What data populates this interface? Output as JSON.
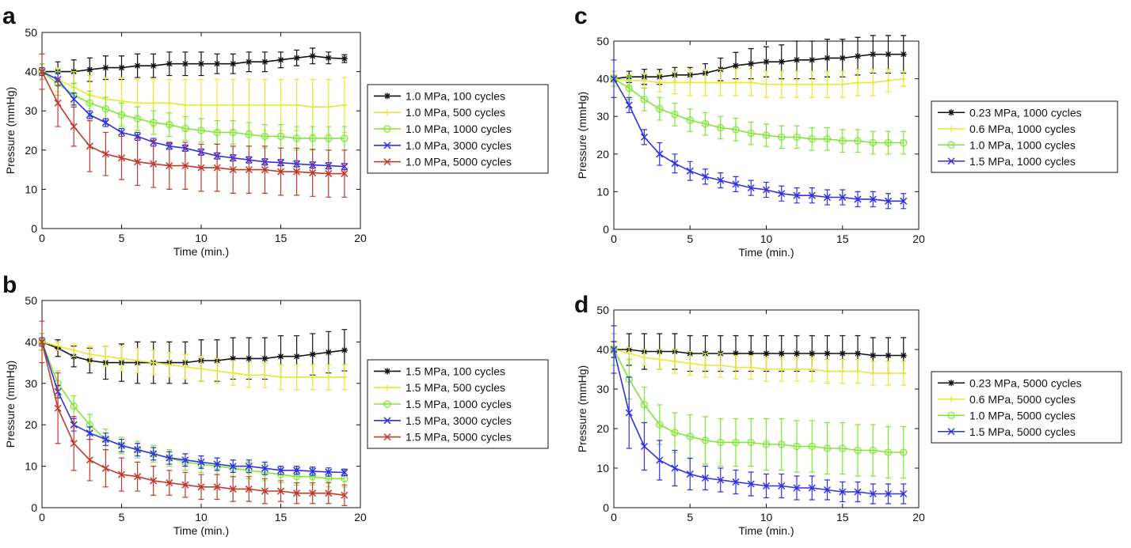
{
  "chart_data": [
    {
      "panel": "a",
      "type": "line",
      "xlabel": "Time (min.)",
      "ylabel": "Pressure (mmHg)",
      "xlim": [
        0,
        20
      ],
      "ylim": [
        0,
        50
      ],
      "xticks": [
        "0",
        "5",
        "10",
        "15",
        "20"
      ],
      "yticks": [
        "0",
        "10",
        "20",
        "30",
        "40",
        "50"
      ],
      "legend_position": "right",
      "x": [
        0,
        1,
        2,
        3,
        4,
        5,
        6,
        7,
        8,
        9,
        10,
        11,
        12,
        13,
        14,
        15,
        16,
        17,
        18,
        19
      ],
      "series": [
        {
          "name": "1.0 MPa, 100 cycles",
          "color": "#111111",
          "marker": "star",
          "values": [
            40,
            40,
            40,
            40.5,
            41,
            41,
            41.5,
            41.5,
            42,
            42,
            42,
            42,
            42,
            42.5,
            42.5,
            43,
            43.5,
            44,
            43.5,
            43.3
          ],
          "errors": [
            2,
            2.5,
            3,
            3,
            3,
            3,
            3,
            3,
            3,
            3,
            3,
            2.5,
            2.5,
            2.5,
            2.5,
            2,
            2,
            2,
            1.5,
            1
          ]
        },
        {
          "name": "1.0 MPa, 500 cycles",
          "color": "#e8e830",
          "marker": "plus",
          "values": [
            40,
            38,
            36,
            34,
            33,
            32.5,
            32,
            32,
            32,
            31.5,
            31.5,
            31.5,
            31.5,
            31.5,
            31.5,
            31.5,
            31.5,
            31,
            31,
            31.5
          ],
          "errors": [
            2,
            3,
            4,
            5,
            5.5,
            6,
            6,
            6,
            6,
            6.5,
            6.5,
            6.5,
            6.5,
            6.5,
            6.5,
            6.5,
            6.5,
            7,
            7,
            7
          ]
        },
        {
          "name": "1.0 MPa, 1000 cycles",
          "color": "#7de830",
          "marker": "circle",
          "values": [
            40,
            37,
            34,
            32,
            30.5,
            29,
            28,
            27,
            26.5,
            25.5,
            25,
            24.5,
            24.5,
            24,
            23.5,
            23.5,
            23,
            23,
            23,
            23
          ],
          "errors": [
            2,
            3,
            3,
            3,
            3,
            3,
            3,
            3,
            3,
            3,
            3,
            3,
            3,
            3,
            3,
            3,
            3,
            3,
            3,
            3
          ]
        },
        {
          "name": "1.0 MPa, 3000 cycles",
          "color": "#3030e8",
          "marker": "x",
          "values": [
            40,
            38,
            33,
            29,
            27,
            24.5,
            23.5,
            22,
            21,
            20.5,
            19.5,
            18.5,
            18,
            17.5,
            17,
            16.8,
            16.5,
            16.2,
            16,
            15.8
          ],
          "errors": [
            1,
            1.5,
            1.5,
            1,
            1,
            1,
            1,
            1,
            0.8,
            0.8,
            0.8,
            0.8,
            0.8,
            0.8,
            0.8,
            0.8,
            0.8,
            0.8,
            0.8,
            0.8
          ]
        },
        {
          "name": "1.0 MPa, 5000 cycles",
          "color": "#c0392b",
          "marker": "x",
          "values": [
            40,
            32,
            26,
            21,
            19,
            18,
            17,
            16.5,
            16,
            16,
            15.5,
            15.5,
            15,
            15,
            15,
            14.5,
            14.5,
            14.2,
            14,
            14
          ],
          "errors": [
            4.5,
            6,
            5,
            6.5,
            5.5,
            5.5,
            6,
            6,
            6,
            6,
            6,
            6,
            6,
            6,
            6,
            6,
            6,
            6,
            6,
            6
          ]
        }
      ]
    },
    {
      "panel": "b",
      "type": "line",
      "xlabel": "Time (min.)",
      "ylabel": "Pressure (mmHg)",
      "xlim": [
        0,
        20
      ],
      "ylim": [
        0,
        50
      ],
      "xticks": [
        "0",
        "5",
        "10",
        "15",
        "20"
      ],
      "yticks": [
        "0",
        "10",
        "20",
        "30",
        "40",
        "50"
      ],
      "legend_position": "right",
      "x": [
        0,
        1,
        2,
        3,
        4,
        5,
        6,
        7,
        8,
        9,
        10,
        11,
        12,
        13,
        14,
        15,
        16,
        17,
        18,
        19
      ],
      "series": [
        {
          "name": "1.5 MPa, 100 cycles",
          "color": "#111111",
          "marker": "star",
          "values": [
            40,
            38.5,
            36.5,
            35.5,
            35,
            35,
            35,
            35,
            35,
            35,
            35.5,
            35.5,
            36,
            36,
            36,
            36.5,
            36.5,
            37,
            37.5,
            38
          ],
          "errors": [
            2,
            2,
            2.5,
            3,
            4,
            4.5,
            5,
            5,
            5,
            5,
            5,
            5,
            5,
            5,
            5,
            5,
            5,
            5,
            5,
            5
          ]
        },
        {
          "name": "1.5 MPa, 500 cycles",
          "color": "#e8e830",
          "marker": "plus",
          "values": [
            40,
            39,
            38,
            37,
            36.5,
            36,
            35.5,
            35,
            34.5,
            34,
            33.5,
            33,
            32.5,
            32,
            32,
            31.5,
            31.5,
            31.5,
            31.5,
            31.5
          ],
          "errors": [
            1,
            1,
            1.5,
            2,
            2.5,
            3,
            3,
            3,
            3,
            3,
            3,
            3,
            3,
            3,
            3,
            3,
            3,
            3,
            3,
            3
          ]
        },
        {
          "name": "1.5 MPa, 1000 cycles",
          "color": "#7de830",
          "marker": "circle",
          "values": [
            40,
            30,
            24.5,
            20,
            16.5,
            15,
            14,
            13,
            12,
            11,
            10.5,
            10,
            9.5,
            9,
            8.5,
            8,
            7.5,
            7.5,
            7,
            7
          ],
          "errors": [
            2,
            3,
            2.5,
            2.5,
            2.5,
            2,
            2,
            2,
            2,
            2,
            2,
            2,
            2,
            2,
            2,
            2,
            2,
            2,
            2,
            2
          ]
        },
        {
          "name": "1.5 MPa, 3000 cycles",
          "color": "#3030e8",
          "marker": "x",
          "values": [
            40,
            28,
            20,
            18,
            16.5,
            15,
            14,
            13,
            12,
            11.5,
            11,
            10.5,
            10,
            10,
            9.5,
            9,
            9,
            8.8,
            8.6,
            8.5
          ],
          "errors": [
            1,
            1.5,
            1.5,
            1.5,
            1.5,
            1.5,
            1.5,
            1.5,
            1.5,
            1.5,
            1.5,
            1.5,
            1.5,
            1.5,
            1.5,
            1,
            1,
            1,
            1,
            0.8
          ]
        },
        {
          "name": "1.5 MPa, 5000 cycles",
          "color": "#c0392b",
          "marker": "x",
          "values": [
            40,
            24,
            15.5,
            11.5,
            9.5,
            8,
            7.5,
            6.5,
            6,
            5.5,
            5,
            5,
            4.5,
            4.5,
            4,
            4,
            3.5,
            3.5,
            3.5,
            3
          ],
          "errors": [
            5,
            8.5,
            6.5,
            5,
            4.5,
            4,
            3.5,
            3.5,
            3,
            3,
            3,
            3,
            3,
            3,
            3,
            2.5,
            2.5,
            2.5,
            2.5,
            2.5
          ]
        }
      ]
    },
    {
      "panel": "c",
      "type": "line",
      "xlabel": "Time (min.)",
      "ylabel": "Pressure (mmHg)",
      "xlim": [
        0,
        20
      ],
      "ylim": [
        0,
        50
      ],
      "xticks": [
        "0",
        "5",
        "10",
        "15",
        "20"
      ],
      "yticks": [
        "0",
        "10",
        "20",
        "30",
        "40",
        "50"
      ],
      "legend_position": "right",
      "x": [
        0,
        1,
        2,
        3,
        4,
        5,
        6,
        7,
        8,
        9,
        10,
        11,
        12,
        13,
        14,
        15,
        16,
        17,
        18,
        19
      ],
      "series": [
        {
          "name": "0.23 MPa, 1000 cycles",
          "color": "#111111",
          "marker": "star",
          "values": [
            40,
            40.5,
            40.5,
            40.5,
            41,
            41,
            41.5,
            42.5,
            43.5,
            44,
            44.5,
            44.5,
            45,
            45,
            45.5,
            45.5,
            46,
            46.5,
            46.5,
            46.5
          ],
          "errors": [
            1,
            1.5,
            2,
            2,
            2,
            2,
            2.5,
            3,
            3.5,
            4,
            4,
            4.5,
            5,
            5,
            5,
            5,
            5,
            5,
            5,
            5
          ]
        },
        {
          "name": "0.6 MPa, 1000 cycles",
          "color": "#e8e830",
          "marker": "plus",
          "values": [
            40,
            39.5,
            39.5,
            39,
            39,
            39,
            39,
            39,
            39,
            39,
            38.5,
            38.5,
            38.5,
            38.5,
            38.5,
            38.5,
            39,
            39,
            39.5,
            40
          ],
          "errors": [
            1,
            1.5,
            2,
            2.5,
            3,
            3.5,
            3.5,
            3.5,
            3.5,
            3.5,
            3.5,
            3.5,
            3.5,
            3.5,
            3.5,
            3.5,
            3.5,
            3.5,
            3,
            2
          ]
        },
        {
          "name": "1.0 MPa, 1000 cycles",
          "color": "#7de830",
          "marker": "circle",
          "values": [
            40,
            37.5,
            34.5,
            32,
            30.5,
            29,
            28,
            27,
            26.5,
            25.5,
            25,
            24.5,
            24.5,
            24,
            24,
            23.5,
            23.5,
            23,
            23,
            23
          ],
          "errors": [
            2,
            3,
            3,
            3,
            3,
            3,
            3,
            3,
            3,
            3,
            3,
            3,
            3,
            3,
            3,
            3,
            3,
            3,
            3,
            3
          ]
        },
        {
          "name": "1.5 MPa, 1000 cycles",
          "color": "#3030e8",
          "marker": "x",
          "values": [
            40,
            33,
            24.5,
            20,
            17.5,
            15.5,
            14,
            13,
            12,
            11,
            10.5,
            9.5,
            9,
            9,
            8.5,
            8.5,
            8,
            8,
            7.5,
            7.5
          ],
          "errors": [
            5,
            2,
            2,
            3,
            2.5,
            2.5,
            2,
            2,
            2,
            2,
            2,
            2,
            2,
            2,
            2,
            2,
            2,
            2,
            2,
            2
          ]
        }
      ]
    },
    {
      "panel": "d",
      "type": "line",
      "xlabel": "Time (min.)",
      "ylabel": "Pressure (mmHg)",
      "xlim": [
        0,
        20
      ],
      "ylim": [
        0,
        50
      ],
      "xticks": [
        "0",
        "5",
        "10",
        "15",
        "20"
      ],
      "yticks": [
        "0",
        "10",
        "20",
        "30",
        "40",
        "50"
      ],
      "legend_position": "right",
      "x": [
        0,
        1,
        2,
        3,
        4,
        5,
        6,
        7,
        8,
        9,
        10,
        11,
        12,
        13,
        14,
        15,
        16,
        17,
        18,
        19
      ],
      "series": [
        {
          "name": "0.23 MPa, 5000 cycles",
          "color": "#111111",
          "marker": "star",
          "values": [
            40,
            40,
            39.5,
            39.5,
            39.5,
            39,
            39,
            39,
            39,
            39,
            39,
            39,
            39,
            39,
            39,
            39,
            39,
            38.5,
            38.5,
            38.5
          ],
          "errors": [
            2,
            4,
            4.5,
            4.5,
            4.5,
            4.5,
            4.5,
            4.5,
            4.5,
            4.5,
            4.5,
            4.5,
            4.5,
            4.5,
            4.5,
            4.5,
            4.5,
            4.5,
            4.5,
            4.5
          ]
        },
        {
          "name": "0.6 MPa, 5000 cycles",
          "color": "#e8e830",
          "marker": "plus",
          "values": [
            40,
            39,
            38,
            37.5,
            37,
            36.5,
            36,
            36,
            35.5,
            35.5,
            35,
            35,
            35,
            35,
            34.5,
            34.5,
            34.5,
            34,
            34,
            34
          ],
          "errors": [
            1,
            1.5,
            2,
            2.5,
            3,
            3,
            3,
            3,
            3,
            3,
            3,
            3,
            3,
            3,
            3,
            3,
            3,
            3,
            3,
            3
          ]
        },
        {
          "name": "1.0 MPa, 5000 cycles",
          "color": "#7de830",
          "marker": "circle",
          "values": [
            40,
            32.5,
            26,
            21,
            19,
            18,
            17,
            16.5,
            16.5,
            16.5,
            16,
            16,
            15.5,
            15.5,
            15,
            15,
            14.5,
            14.5,
            14,
            14
          ],
          "errors": [
            4,
            5,
            4.5,
            5,
            5,
            5.5,
            6,
            6,
            6,
            6,
            6.5,
            6.5,
            6.5,
            6.5,
            6.5,
            6.5,
            6.5,
            6.5,
            6.5,
            6.5
          ]
        },
        {
          "name": "1.5 MPa, 5000 cycles",
          "color": "#3030e8",
          "marker": "x",
          "values": [
            40,
            24,
            15.5,
            12,
            10,
            8.5,
            7.5,
            7,
            6.5,
            6,
            5.5,
            5.5,
            5,
            5,
            4.5,
            4,
            4,
            3.5,
            3.5,
            3.5
          ],
          "errors": [
            6,
            9,
            6,
            5,
            4.5,
            4,
            3,
            3,
            3,
            3,
            3,
            3,
            3,
            3,
            2.5,
            2.5,
            2.5,
            2.5,
            2.5,
            2.5
          ]
        }
      ]
    }
  ]
}
